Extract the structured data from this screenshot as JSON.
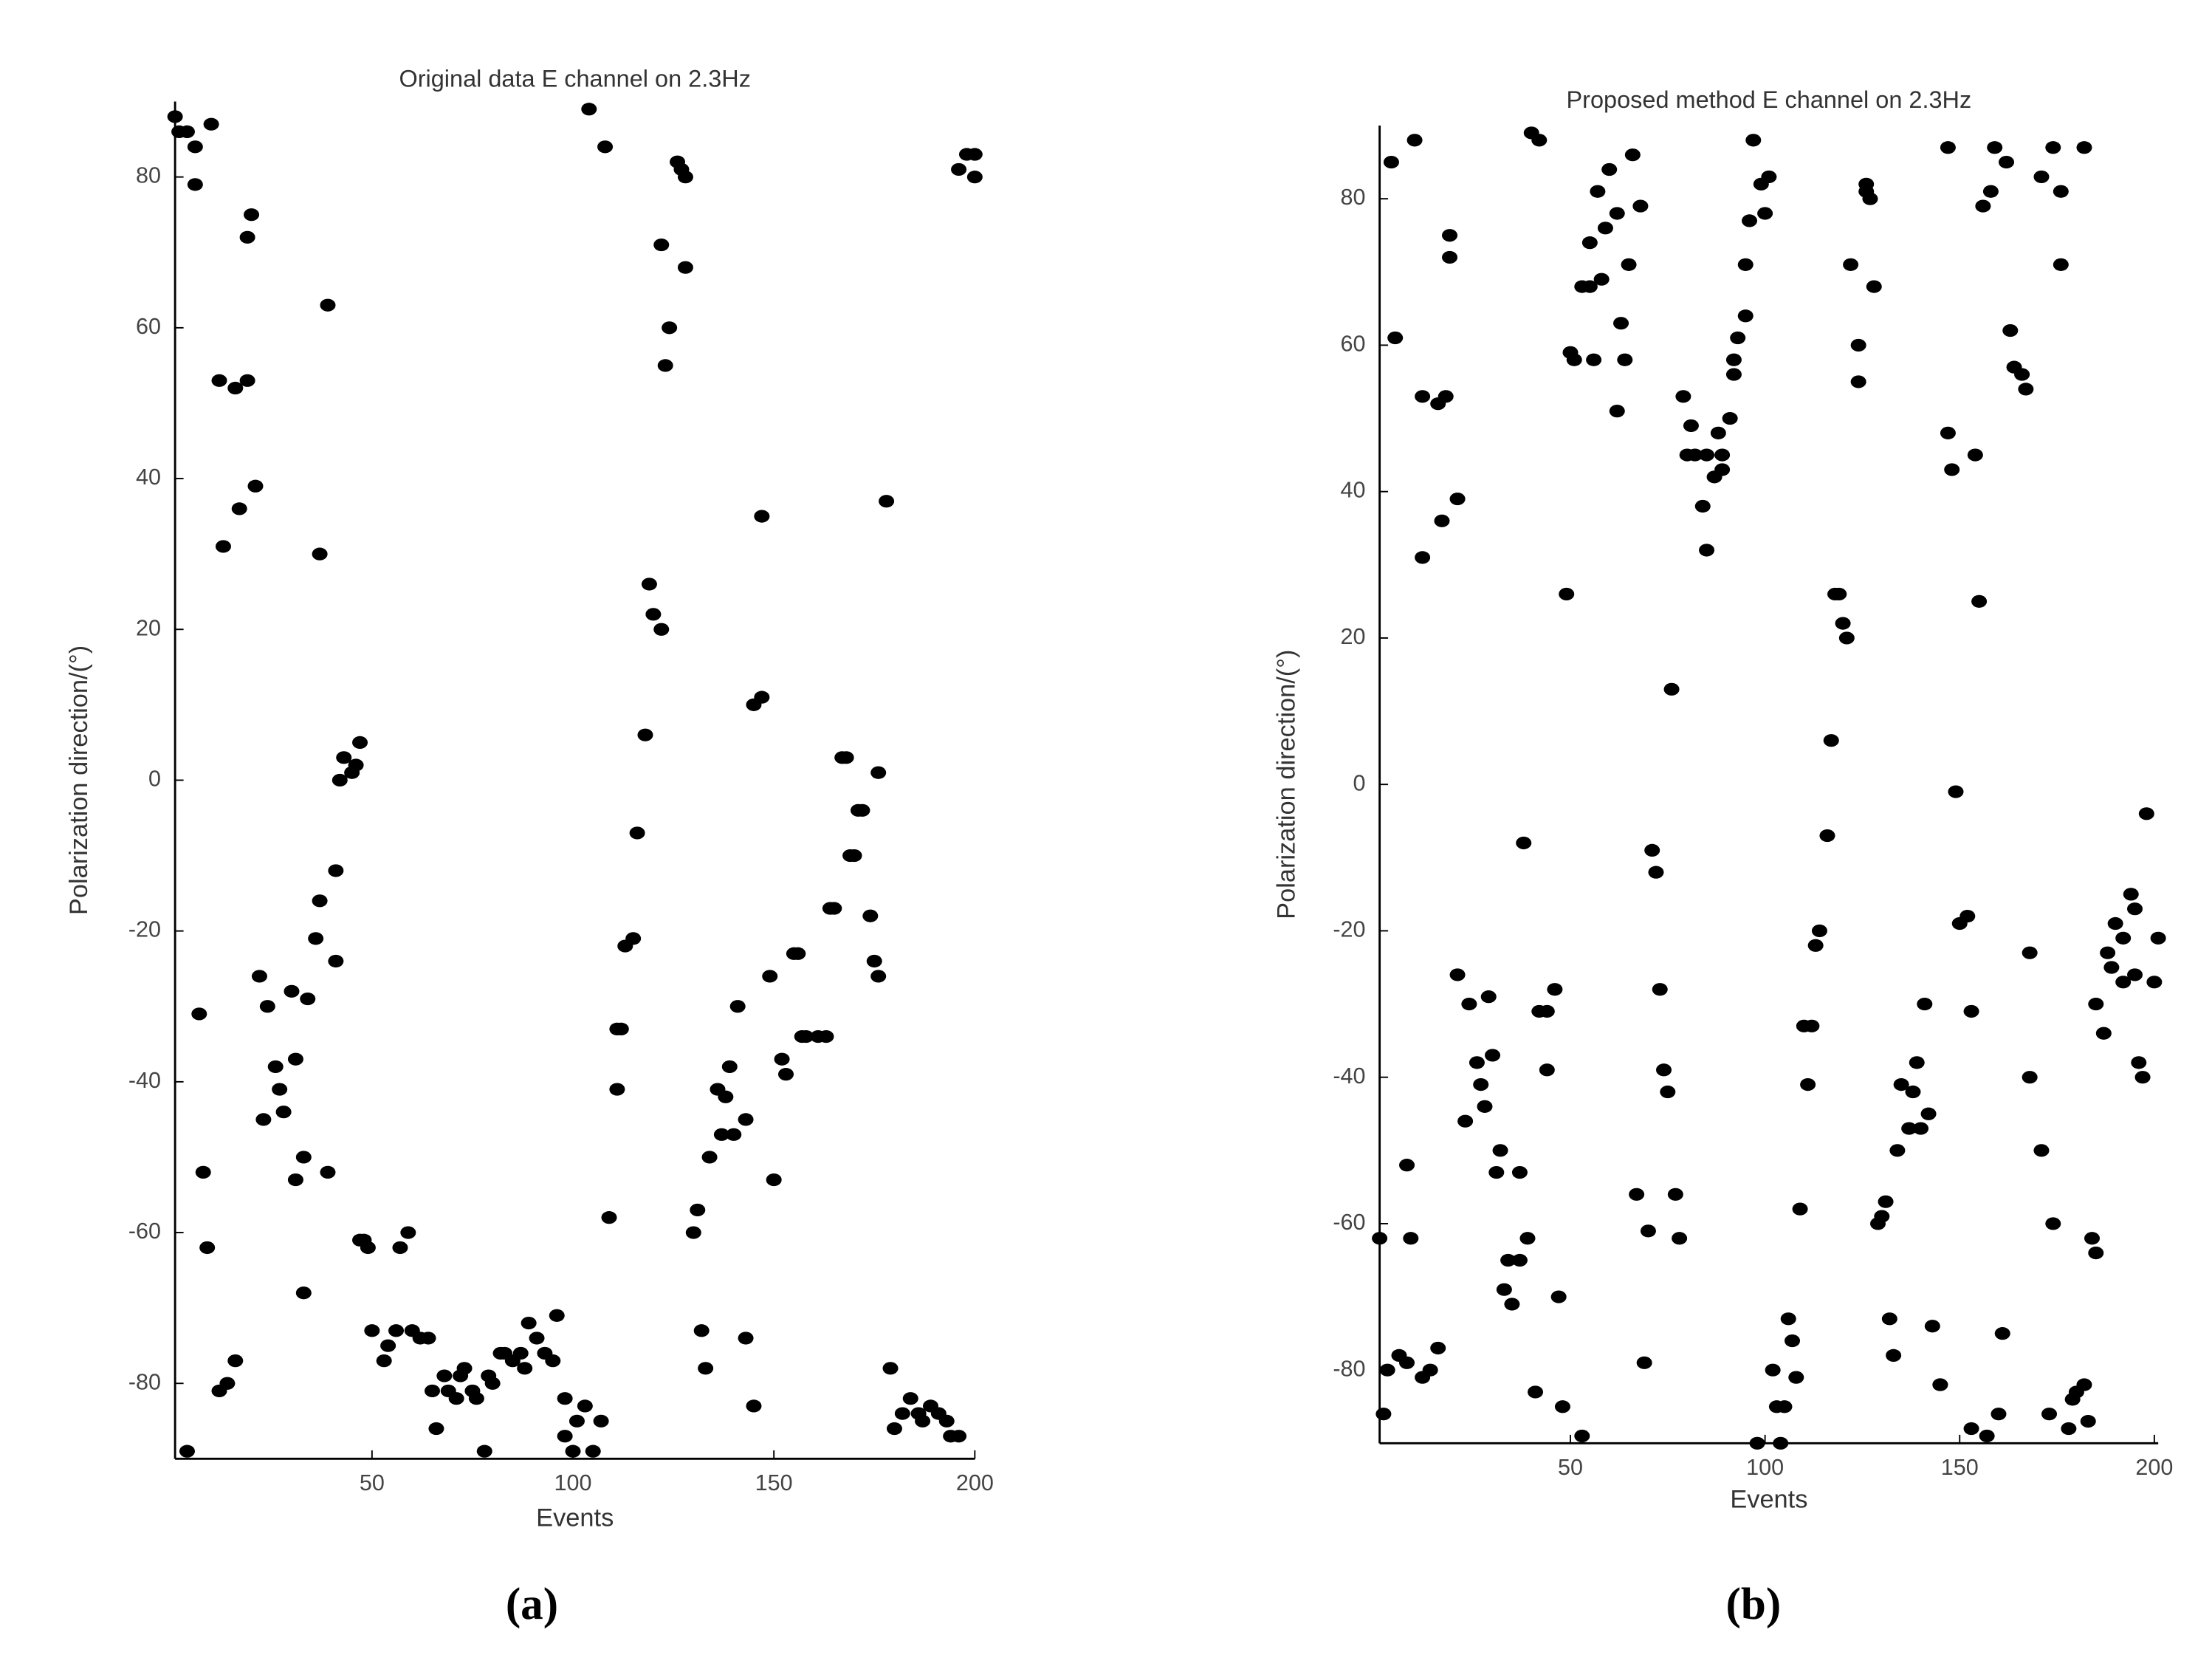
{
  "chart_data": [
    {
      "type": "scatter",
      "title": "Original data E channel on 2.3Hz",
      "x_label": "Events",
      "y_label": "Polarization direction/(°)",
      "panel_label": "(a)",
      "color": "#000000",
      "xlim": [
        1,
        200
      ],
      "ylim": [
        -90,
        90
      ],
      "xticks": [
        50,
        100,
        150,
        200
      ],
      "yticks": [
        -80,
        -60,
        -40,
        -20,
        0,
        20,
        40,
        60,
        80
      ],
      "x": [
        1,
        2,
        4,
        6,
        10,
        6,
        12,
        16,
        19,
        19,
        20,
        13,
        17,
        21,
        39,
        37,
        7,
        8,
        9,
        12,
        14,
        16,
        4,
        22,
        24,
        23,
        26,
        27,
        28,
        30,
        31,
        31,
        33,
        33,
        34,
        36,
        37,
        39,
        41,
        41,
        42,
        43,
        45,
        46,
        47,
        47,
        48,
        49,
        50,
        53,
        54,
        56,
        57,
        59,
        60,
        62,
        64,
        65,
        66,
        68,
        69,
        71,
        72,
        73,
        75,
        76,
        78,
        79,
        80,
        82,
        83,
        85,
        87,
        88,
        89,
        91,
        93,
        95,
        96,
        98,
        98,
        100,
        101,
        103,
        105,
        107,
        104,
        108,
        109,
        111,
        112,
        111,
        113,
        115,
        116,
        118,
        119,
        120,
        122,
        122,
        123,
        124,
        126,
        127,
        128,
        128,
        130,
        131,
        132,
        133,
        134,
        136,
        137,
        138,
        139,
        140,
        141,
        143,
        143,
        145,
        145,
        147,
        147,
        149,
        150,
        152,
        153,
        155,
        156,
        157,
        158,
        161,
        163,
        164,
        165,
        167,
        168,
        169,
        170,
        171,
        172,
        174,
        175,
        176,
        176,
        178,
        179,
        180,
        182,
        184,
        186,
        187,
        189,
        191,
        193,
        194,
        196,
        196,
        198,
        200,
        200
      ],
      "y": [
        88,
        86,
        86,
        84,
        87,
        79,
        53,
        52,
        53,
        72,
        75,
        31,
        36,
        39,
        63,
        30,
        -31,
        -52,
        -62,
        -81,
        -80,
        -77,
        -89,
        -26,
        -30,
        -45,
        -38,
        -41,
        -44,
        -28,
        -37,
        -53,
        -50,
        -68,
        -29,
        -21,
        -16,
        -52,
        -24,
        -12,
        0,
        3,
        1,
        2,
        5,
        -61,
        -61,
        -62,
        -73,
        -77,
        -75,
        -73,
        -62,
        -60,
        -73,
        -74,
        -74,
        -81,
        -86,
        -79,
        -81,
        -82,
        -79,
        -78,
        -81,
        -82,
        -89,
        -79,
        -80,
        -76,
        -76,
        -77,
        -76,
        -78,
        -72,
        -74,
        -76,
        -77,
        -71,
        -82,
        -87,
        -89,
        -85,
        -83,
        -89,
        -85,
        89,
        84,
        -58,
        -33,
        -33,
        -41,
        -22,
        -21,
        -7,
        6,
        26,
        22,
        20,
        71,
        55,
        60,
        82,
        81,
        80,
        68,
        -60,
        -57,
        -73,
        -78,
        -50,
        -41,
        -47,
        -42,
        -38,
        -47,
        -30,
        -45,
        -74,
        -83,
        10,
        11,
        35,
        -26,
        -53,
        -37,
        -39,
        -23,
        -23,
        -34,
        -34,
        -34,
        -34,
        -17,
        -17,
        3,
        3,
        -10,
        -10,
        -4,
        -4,
        -18,
        -24,
        -26,
        1,
        37,
        -78,
        -86,
        -84,
        -82,
        -84,
        -85,
        -83,
        -84,
        -85,
        -87,
        -87,
        81,
        83,
        83,
        80
      ]
    },
    {
      "type": "scatter",
      "title": "Proposed method E channel on 2.3Hz",
      "x_label": "Events",
      "y_label": "Polarization direction/(°)",
      "panel_label": "(b)",
      "color": "#000000",
      "xlim": [
        1,
        201
      ],
      "ylim": [
        -90,
        90
      ],
      "xticks": [
        50,
        100,
        150,
        200
      ],
      "yticks": [
        -80,
        -60,
        -40,
        -20,
        0,
        20,
        40,
        60,
        80
      ],
      "x": [
        2,
        3,
        1,
        4,
        5,
        8,
        9,
        6,
        8,
        10,
        12,
        16,
        18,
        12,
        17,
        21,
        19,
        19,
        12,
        14,
        16,
        21,
        24,
        23,
        26,
        27,
        28,
        29,
        30,
        31,
        32,
        33,
        34,
        35,
        37,
        37,
        38,
        39,
        41,
        40,
        42,
        42,
        44,
        44,
        46,
        47,
        48,
        49,
        50,
        51,
        53,
        53,
        55,
        55,
        56,
        57,
        58,
        59,
        60,
        62,
        62,
        63,
        64,
        65,
        66,
        67,
        68,
        70,
        69,
        71,
        72,
        73,
        74,
        75,
        76,
        77,
        78,
        79,
        80,
        81,
        82,
        84,
        85,
        85,
        87,
        88,
        89,
        89,
        91,
        92,
        92,
        93,
        95,
        95,
        96,
        97,
        99,
        100,
        101,
        98,
        102,
        103,
        105,
        104,
        106,
        107,
        108,
        109,
        110,
        112,
        111,
        113,
        114,
        116,
        117,
        118,
        119,
        120,
        121,
        122,
        124,
        124,
        126,
        126,
        127,
        128,
        129,
        130,
        131,
        132,
        133,
        134,
        135,
        137,
        138,
        139,
        140,
        141,
        142,
        143,
        145,
        145,
        147,
        147,
        148,
        149,
        150,
        152,
        153,
        153,
        155,
        154,
        156,
        157,
        158,
        159,
        160,
        161,
        162,
        163,
        164,
        166,
        167,
        168,
        168,
        171,
        171,
        173,
        174,
        174,
        176,
        176,
        178,
        179,
        180,
        182,
        182,
        183,
        184,
        185,
        185,
        187,
        188,
        189,
        190,
        192,
        192,
        194,
        195,
        195,
        196,
        197,
        198,
        200,
        201
      ],
      "y": [
        -86,
        -80,
        -62,
        85,
        61,
        -52,
        -62,
        -78,
        -79,
        88,
        53,
        52,
        53,
        31,
        36,
        39,
        75,
        72,
        -81,
        -80,
        -77,
        -26,
        -30,
        -46,
        -38,
        -41,
        -44,
        -29,
        -37,
        -53,
        -50,
        -69,
        -65,
        -71,
        -65,
        -53,
        -8,
        -62,
        -83,
        89,
        88,
        -31,
        -31,
        -39,
        -28,
        -70,
        -85,
        26,
        59,
        58,
        -89,
        68,
        74,
        68,
        58,
        81,
        69,
        76,
        84,
        78,
        51,
        63,
        58,
        71,
        86,
        -56,
        79,
        -61,
        -79,
        -9,
        -12,
        -28,
        -39,
        -42,
        13,
        -56,
        -62,
        53,
        45,
        49,
        45,
        38,
        45,
        32,
        42,
        48,
        45,
        43,
        50,
        56,
        58,
        61,
        64,
        71,
        77,
        88,
        82,
        78,
        83,
        -90,
        -80,
        -85,
        -85,
        -90,
        -73,
        -76,
        -81,
        -58,
        -33,
        -33,
        -41,
        -22,
        -20,
        -7,
        6,
        26,
        26,
        22,
        20,
        71,
        55,
        60,
        82,
        81,
        80,
        68,
        -60,
        -59,
        -57,
        -73,
        -78,
        -50,
        -41,
        -47,
        -42,
        -38,
        -47,
        -30,
        -45,
        -74,
        -82,
        -82,
        87,
        48,
        43,
        -1,
        -19,
        -18,
        -31,
        -88,
        25,
        45,
        79,
        -89,
        81,
        87,
        -86,
        -75,
        85,
        62,
        57,
        56,
        54,
        -23,
        -40,
        -50,
        83,
        -86,
        -60,
        87,
        81,
        71,
        -88,
        -84,
        -83,
        -82,
        87,
        -87,
        -62,
        -64,
        -30,
        -34,
        -23,
        -25,
        -19,
        -21,
        -27,
        -15,
        -17,
        -26,
        -38,
        -40,
        -4,
        -27,
        -21
      ]
    }
  ]
}
